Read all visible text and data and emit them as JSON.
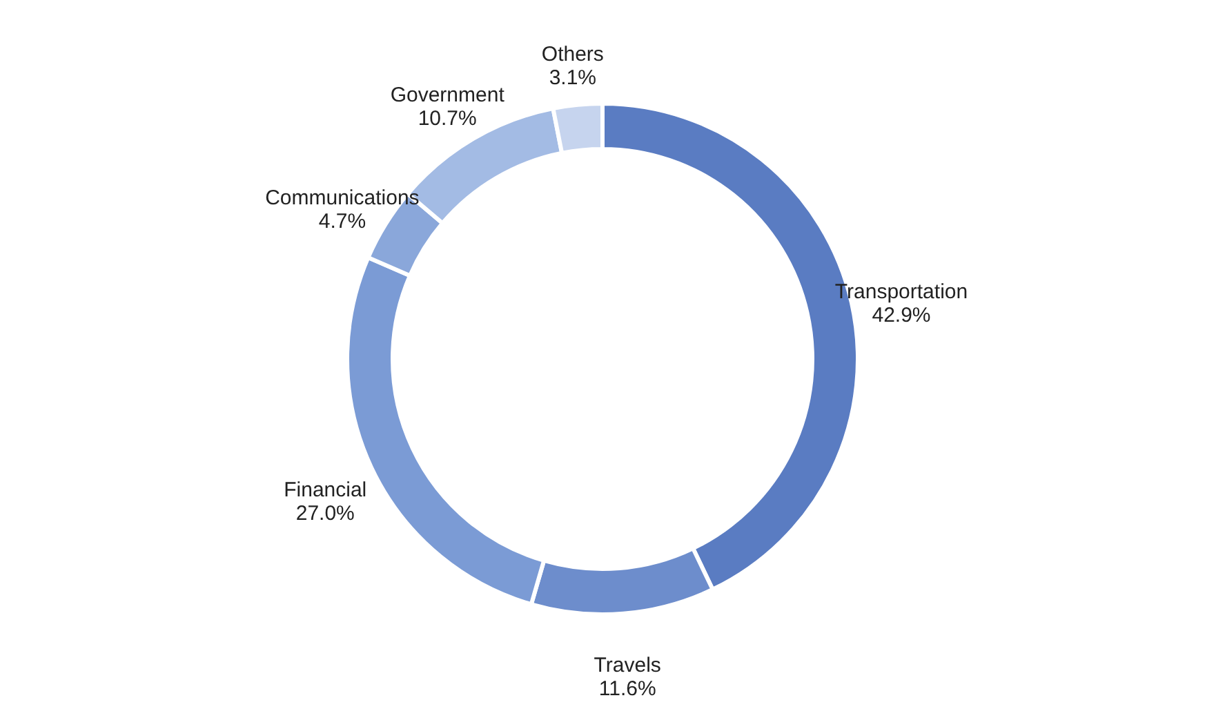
{
  "chart_data": {
    "type": "donut",
    "categories": [
      "Transportation",
      "Travels",
      "Financial",
      "Communications",
      "Government",
      "Others"
    ],
    "values": [
      42.9,
      11.6,
      27.0,
      4.7,
      10.7,
      3.1
    ],
    "colors": [
      "#5a7cc2",
      "#6d8dcc",
      "#7b9bd5",
      "#8aa7da",
      "#a3bbe4",
      "#c6d4ee"
    ],
    "value_labels": [
      "42.9%",
      "11.6%",
      "27.0%",
      "4.7%",
      "10.7%",
      "3.1%"
    ]
  }
}
